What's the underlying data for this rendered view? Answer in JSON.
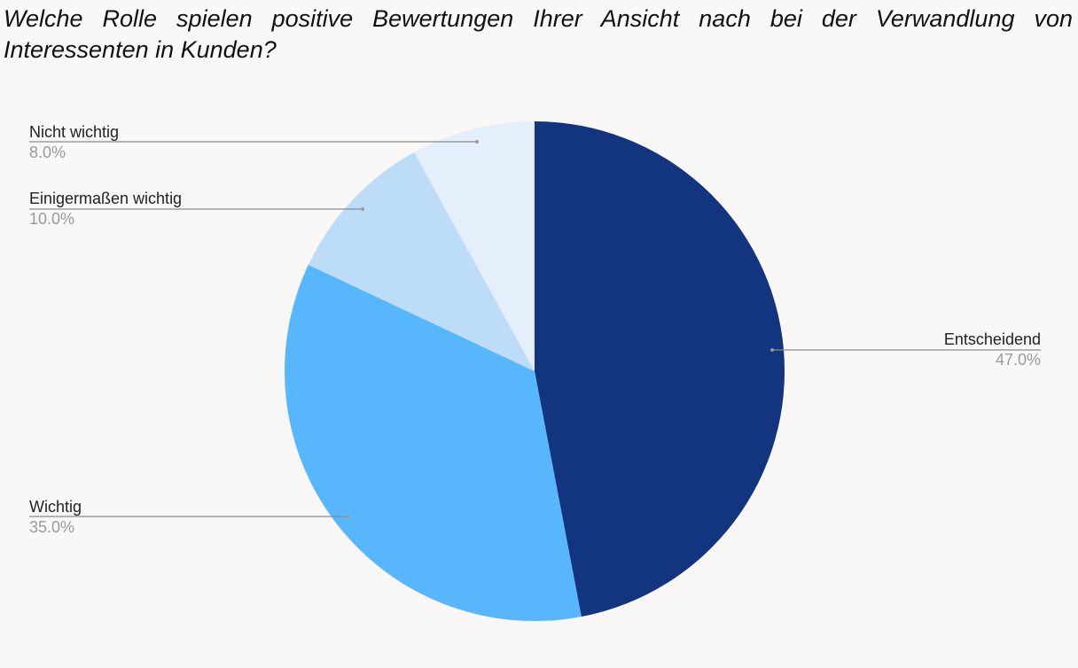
{
  "chart_data": {
    "type": "pie",
    "title": "Welche Rolle spielen positive Bewertungen Ihrer Ansicht nach bei der Verwandlung von Interessenten in Kunden?",
    "slices": [
      {
        "label": "Entscheidend",
        "value": 47.0,
        "display": "47.0%",
        "color": "#13347e"
      },
      {
        "label": "Wichtig",
        "value": 35.0,
        "display": "35.0%",
        "color": "#58b7fc"
      },
      {
        "label": "Einigermaßen wichtig",
        "value": 10.0,
        "display": "10.0%",
        "color": "#bddcf7"
      },
      {
        "label": "Nicht wichtig",
        "value": 8.0,
        "display": "8.0%",
        "color": "#e4effb"
      }
    ],
    "start_angle": "12 o'clock",
    "direction": "clockwise",
    "legend": "none"
  }
}
